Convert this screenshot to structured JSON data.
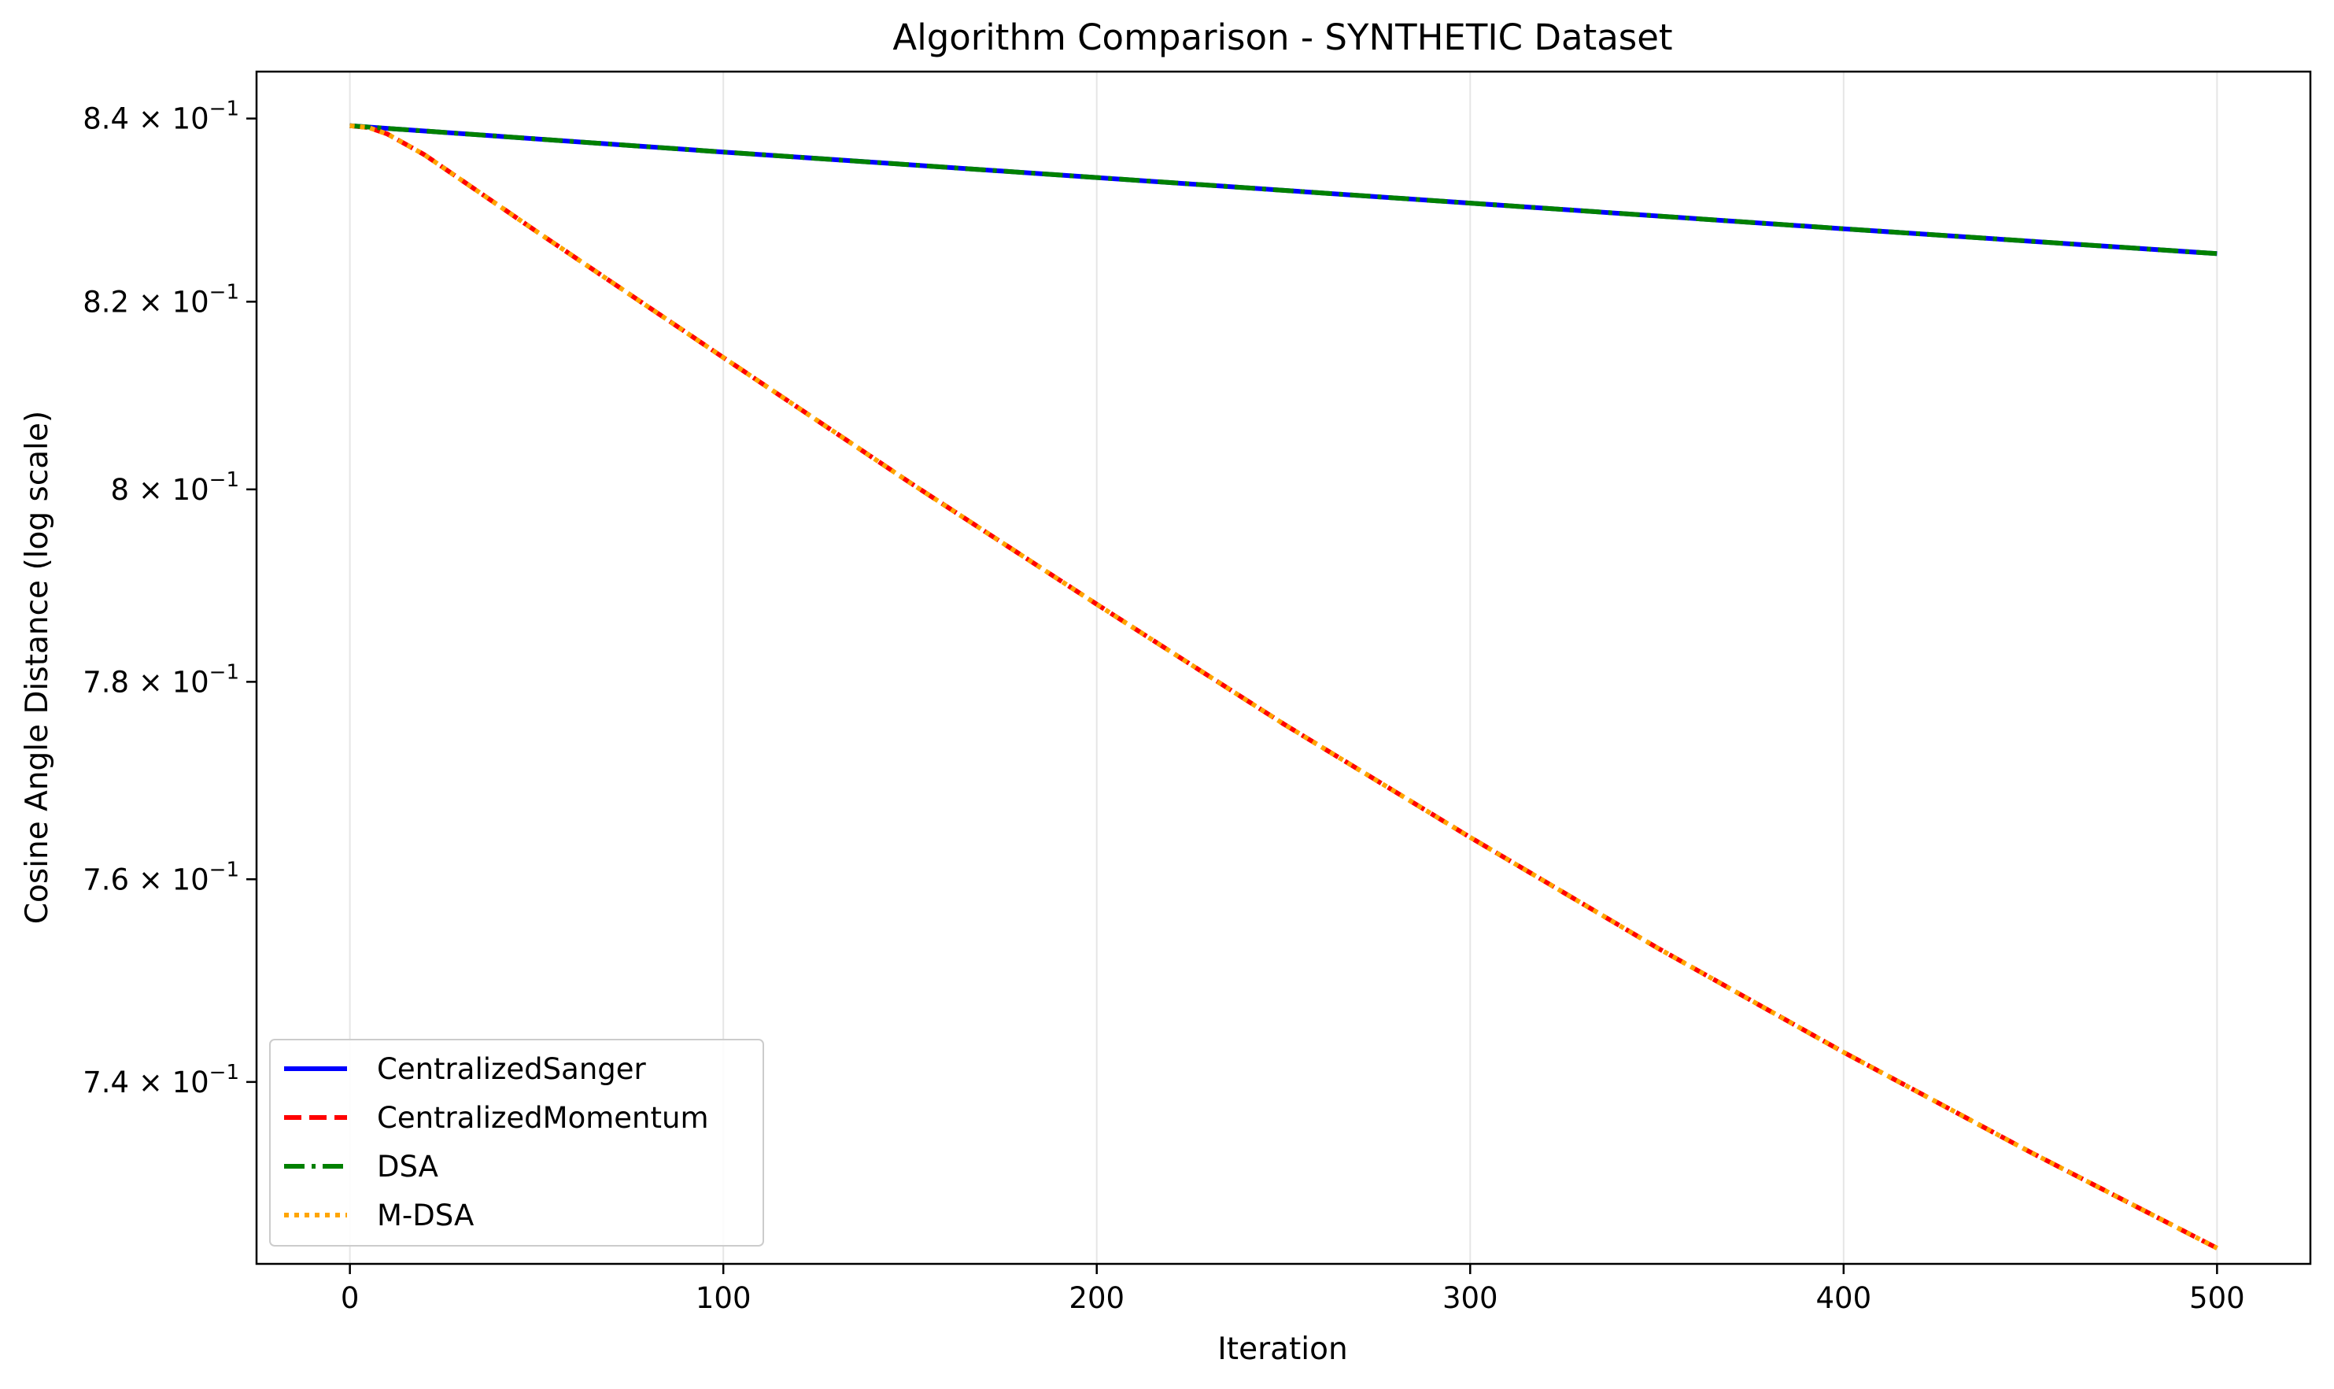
{
  "chart_data": {
    "type": "line",
    "title": "Algorithm Comparison - SYNTHETIC Dataset",
    "xlabel": "Iteration",
    "ylabel": "Cosine Angle Distance (log scale)",
    "xlim": [
      -25,
      525
    ],
    "ylim": [
      0.7225,
      0.8452
    ],
    "yscale": "log",
    "grid": "x-only",
    "legend_position": "lower-left",
    "x_ticks": [
      {
        "value": 0,
        "label": "0"
      },
      {
        "value": 100,
        "label": "100"
      },
      {
        "value": 200,
        "label": "200"
      },
      {
        "value": 300,
        "label": "300"
      },
      {
        "value": 400,
        "label": "400"
      },
      {
        "value": 500,
        "label": "500"
      }
    ],
    "y_ticks": [
      {
        "value": 0.74,
        "mantissa": "7.4",
        "base": "10",
        "exponent": "−1"
      },
      {
        "value": 0.76,
        "mantissa": "7.6",
        "base": "10",
        "exponent": "−1"
      },
      {
        "value": 0.78,
        "mantissa": "7.8",
        "base": "10",
        "exponent": "−1"
      },
      {
        "value": 0.8,
        "mantissa": "8",
        "base": "10",
        "exponent": "−1"
      },
      {
        "value": 0.82,
        "mantissa": "8.2",
        "base": "10",
        "exponent": "−1"
      },
      {
        "value": 0.84,
        "mantissa": "8.4",
        "base": "10",
        "exponent": "−1"
      }
    ],
    "series": [
      {
        "name": "CentralizedSanger",
        "color": "#0000ff",
        "style": "solid",
        "x": [
          0,
          100,
          200,
          300,
          400,
          500
        ],
        "y": [
          0.8392,
          0.8363,
          0.8335,
          0.8307,
          0.8279,
          0.8252
        ]
      },
      {
        "name": "CentralizedMomentum",
        "color": "#ff0000",
        "style": "dashed",
        "x": [
          0,
          5,
          10,
          20,
          50,
          100,
          150,
          200,
          250,
          300,
          350,
          400,
          450,
          500
        ],
        "y": [
          0.8392,
          0.839,
          0.8383,
          0.836,
          0.8276,
          0.814,
          0.8007,
          0.788,
          0.7757,
          0.7642,
          0.7532,
          0.7429,
          0.7332,
          0.724
        ]
      },
      {
        "name": "DSA",
        "color": "#008000",
        "style": "dashdot",
        "x": [
          0,
          100,
          200,
          300,
          400,
          500
        ],
        "y": [
          0.8392,
          0.8363,
          0.8335,
          0.8307,
          0.8279,
          0.8252
        ]
      },
      {
        "name": "M-DSA",
        "color": "#ffa500",
        "style": "dotted",
        "x": [
          0,
          5,
          10,
          20,
          50,
          100,
          150,
          200,
          250,
          300,
          350,
          400,
          450,
          500
        ],
        "y": [
          0.8392,
          0.839,
          0.8383,
          0.836,
          0.8276,
          0.814,
          0.8007,
          0.788,
          0.7757,
          0.7642,
          0.7532,
          0.7429,
          0.7332,
          0.724
        ]
      }
    ]
  }
}
